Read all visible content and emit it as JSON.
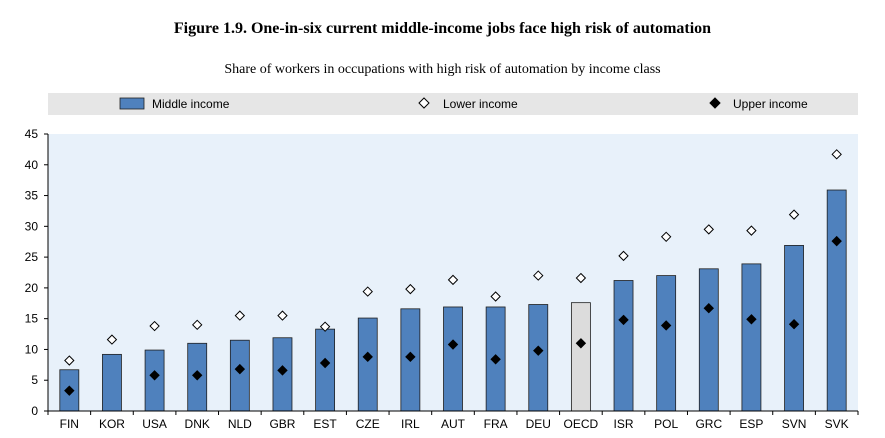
{
  "title": "Figure 1.9. One-in-six current middle-income jobs face high risk of automation",
  "subtitle": "Share of workers in occupations with high risk of automation by income class",
  "chart_data": {
    "type": "bar",
    "categories": [
      "FIN",
      "KOR",
      "USA",
      "DNK",
      "NLD",
      "GBR",
      "EST",
      "CZE",
      "IRL",
      "AUT",
      "FRA",
      "DEU",
      "OECD",
      "ISR",
      "POL",
      "GRC",
      "ESP",
      "SVN",
      "SVK"
    ],
    "series": [
      {
        "name": "Middle income",
        "kind": "bar",
        "color": "#4f81bd",
        "values": [
          6.7,
          9.2,
          9.9,
          11.0,
          11.5,
          11.9,
          13.3,
          15.1,
          16.6,
          16.9,
          16.9,
          17.3,
          17.6,
          21.2,
          22.0,
          23.1,
          23.9,
          26.9,
          35.9
        ]
      },
      {
        "name": "Lower income",
        "kind": "marker-open-diamond",
        "values": [
          8.2,
          11.6,
          13.8,
          14.0,
          15.5,
          15.5,
          13.7,
          19.4,
          19.8,
          21.3,
          18.6,
          22.0,
          21.6,
          25.2,
          28.3,
          29.5,
          29.3,
          31.9,
          41.7
        ]
      },
      {
        "name": "Upper income",
        "kind": "marker-filled-diamond",
        "values": [
          3.3,
          null,
          5.8,
          5.8,
          6.8,
          6.6,
          7.8,
          8.8,
          8.8,
          10.8,
          8.4,
          9.8,
          11.0,
          14.8,
          13.9,
          16.7,
          14.9,
          14.1,
          27.6
        ]
      }
    ],
    "highlight_category": "OECD",
    "highlight_color": "#dcdcdc",
    "ylim": [
      0,
      45
    ],
    "yticks": [
      0,
      5,
      10,
      15,
      20,
      25,
      30,
      35,
      40,
      45
    ],
    "grid": false,
    "legend": "top",
    "xlabel": "",
    "ylabel": ""
  }
}
